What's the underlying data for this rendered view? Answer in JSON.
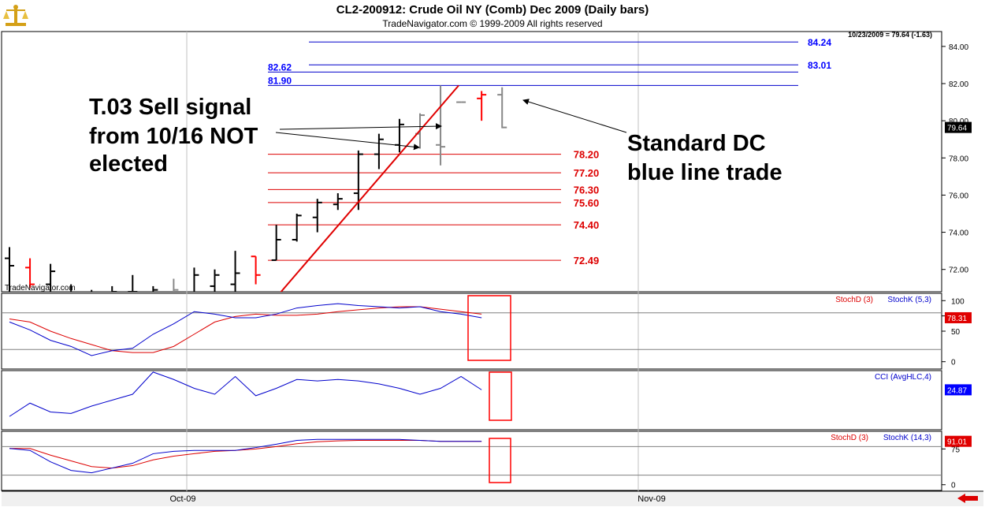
{
  "header": {
    "title": "CL2-200912:  Crude Oil NY (Comb) Dec 2009  (Daily bars)",
    "subtitle": "TradeNavigator.com © 1999-2009 All rights reserved",
    "status": "10/23/2009 = 79.64 (-1.63)",
    "watermark": "TradeNavigator.com",
    "last_price_tag": "79.64"
  },
  "colors": {
    "up": "#000000",
    "down": "#ff0000",
    "gray": "#888888",
    "blue": "#0000cc",
    "red": "#dd0000",
    "tag_blue": "#0000ff"
  },
  "chart_data": [
    {
      "type": "ohlc",
      "panel": "price",
      "ylim": [
        70.8,
        84.8
      ],
      "yticks": [
        "84.00",
        "82.00",
        "80.00",
        "78.00",
        "76.00",
        "74.00",
        "72.00"
      ],
      "ytick_values": [
        84,
        82,
        80,
        78,
        76,
        74,
        72
      ],
      "xtick_labels": [
        "Oct-09",
        "Nov-09"
      ],
      "bars": [
        {
          "o": 72.6,
          "h": 73.2,
          "l": 70.0,
          "c": 72.2,
          "color": "up"
        },
        {
          "o": 72.1,
          "h": 72.6,
          "l": 71.0,
          "c": 71.2,
          "color": "down"
        },
        {
          "o": 71.2,
          "h": 72.3,
          "l": 70.5,
          "c": 71.9,
          "color": "up"
        },
        {
          "o": 70.6,
          "h": 71.2,
          "l": 70.0,
          "c": 70.5,
          "color": "up"
        },
        {
          "o": 70.2,
          "h": 70.9,
          "l": 69.8,
          "c": 70.6,
          "color": "up"
        },
        {
          "o": 70.5,
          "h": 71.1,
          "l": 70.0,
          "c": 70.8,
          "color": "up"
        },
        {
          "o": 70.8,
          "h": 71.7,
          "l": 70.0,
          "c": 70.8,
          "color": "up"
        },
        {
          "o": 70.6,
          "h": 71.1,
          "l": 70.2,
          "c": 70.9,
          "color": "up"
        },
        {
          "o": 70.5,
          "h": 71.5,
          "l": 70.0,
          "c": 70.9,
          "color": "gray"
        },
        {
          "o": 70.5,
          "h": 72.1,
          "l": 70.1,
          "c": 71.7,
          "color": "up"
        },
        {
          "o": 71.1,
          "h": 72.0,
          "l": 70.4,
          "c": 71.7,
          "color": "up"
        },
        {
          "o": 71.2,
          "h": 73.0,
          "l": 70.6,
          "c": 71.8,
          "color": "up"
        },
        {
          "o": 72.7,
          "h": 72.7,
          "l": 71.2,
          "c": 71.7,
          "color": "down"
        },
        {
          "o": 72.5,
          "h": 74.4,
          "l": 72.5,
          "c": 73.6,
          "color": "up"
        },
        {
          "o": 73.6,
          "h": 75.0,
          "l": 73.5,
          "c": 74.9,
          "color": "up"
        },
        {
          "o": 74.8,
          "h": 75.8,
          "l": 74.0,
          "c": 75.6,
          "color": "up"
        },
        {
          "o": 75.5,
          "h": 76.1,
          "l": 75.2,
          "c": 75.8,
          "color": "up"
        },
        {
          "o": 76.1,
          "h": 78.4,
          "l": 75.2,
          "c": 78.2,
          "color": "up"
        },
        {
          "o": 78.2,
          "h": 79.3,
          "l": 77.4,
          "c": 79.0,
          "color": "up"
        },
        {
          "o": 78.7,
          "h": 80.1,
          "l": 78.3,
          "c": 79.8,
          "color": "up"
        },
        {
          "o": 79.3,
          "h": 80.4,
          "l": 78.5,
          "c": 80.3,
          "color": "gray"
        },
        {
          "o": 78.7,
          "h": 81.9,
          "l": 77.6,
          "c": 78.6,
          "color": "gray"
        },
        {
          "o": 81.0,
          "h": 81.0,
          "l": 81.0,
          "c": 81.0,
          "color": "gray"
        },
        {
          "o": 81.2,
          "h": 81.6,
          "l": 80.0,
          "c": 81.4,
          "color": "down"
        },
        {
          "o": 81.4,
          "h": 81.8,
          "l": 79.6,
          "c": 79.64,
          "color": "gray"
        }
      ],
      "trendline": [
        {
          "bar": 13,
          "price": 70.6
        },
        {
          "bar": 22,
          "price": 81.9
        }
      ],
      "blue_lines": [
        {
          "price": 84.24,
          "label": "84.24"
        },
        {
          "price": 83.01,
          "label": "83.01"
        },
        {
          "price": 82.62,
          "label": "82.62"
        },
        {
          "price": 81.9,
          "label": "81.90"
        }
      ],
      "red_lines": [
        {
          "price": 78.2,
          "label": "78.20"
        },
        {
          "price": 77.2,
          "label": "77.20"
        },
        {
          "price": 76.3,
          "label": "76.30"
        },
        {
          "price": 75.6,
          "label": "75.60"
        },
        {
          "price": 74.4,
          "label": "74.40"
        },
        {
          "price": 72.49,
          "label": "72.49"
        }
      ],
      "annotations": [
        {
          "text": [
            "T.03 Sell signal",
            "from 10/16 NOT",
            "elected"
          ]
        },
        {
          "text": [
            "Standard DC",
            "blue line trade"
          ]
        }
      ]
    },
    {
      "type": "line",
      "panel": "stoch1",
      "legend": [
        "StochD (3)",
        "StochK (5,3)"
      ],
      "ylim": [
        -12,
        112
      ],
      "yticks": [
        "100",
        "75",
        "50",
        "0"
      ],
      "ytick_values": [
        100,
        75,
        50,
        0
      ],
      "hlines": [
        80,
        20
      ],
      "value_tag": "78.31",
      "series": [
        {
          "name": "StochD (3)",
          "color": "red",
          "values": [
            70,
            65,
            50,
            38,
            28,
            18,
            15,
            15,
            25,
            45,
            65,
            74,
            78,
            76,
            76,
            78,
            82,
            85,
            88,
            90,
            90,
            86,
            82,
            78
          ]
        },
        {
          "name": "StochK (5,3)",
          "color": "blue",
          "values": [
            65,
            52,
            35,
            25,
            10,
            18,
            22,
            45,
            62,
            82,
            78,
            72,
            72,
            78,
            88,
            92,
            95,
            92,
            90,
            88,
            90,
            82,
            78,
            72
          ]
        }
      ]
    },
    {
      "type": "line",
      "panel": "cci",
      "legend": [
        "CCI (AvgHLC,4)"
      ],
      "ylim": [
        -100,
        100
      ],
      "value_tag": "24.87",
      "series": [
        {
          "name": "CCI (AvgHLC,4)",
          "color": "blue",
          "values": [
            -55,
            -10,
            -40,
            -45,
            -20,
            0,
            20,
            95,
            70,
            40,
            20,
            80,
            15,
            40,
            70,
            65,
            70,
            65,
            55,
            40,
            20,
            40,
            80,
            35
          ]
        }
      ]
    },
    {
      "type": "line",
      "panel": "stoch2",
      "legend": [
        "StochD (3)",
        "StochK (14,3)"
      ],
      "ylim": [
        -12,
        112
      ],
      "yticks": [
        "75",
        "0"
      ],
      "ytick_values": [
        75,
        0
      ],
      "hlines": [
        80,
        20
      ],
      "value_tag": "91.01",
      "series": [
        {
          "name": "StochD (3)",
          "color": "red",
          "values": [
            76,
            76,
            62,
            50,
            38,
            35,
            40,
            52,
            60,
            65,
            70,
            72,
            75,
            80,
            86,
            90,
            92,
            93,
            93,
            93,
            93,
            91,
            91,
            91
          ]
        },
        {
          "name": "StochK (14,3)",
          "color": "blue",
          "values": [
            76,
            72,
            48,
            30,
            25,
            35,
            45,
            65,
            70,
            72,
            72,
            72,
            78,
            85,
            93,
            95,
            95,
            95,
            95,
            95,
            93,
            91,
            91,
            91
          ]
        }
      ]
    }
  ]
}
